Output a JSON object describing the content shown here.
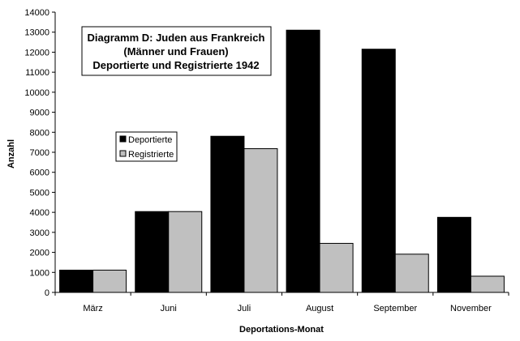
{
  "chart_data": {
    "type": "bar",
    "title_lines": [
      "Diagramm D: Juden aus Frankreich",
      "(Männer und Frauen)",
      "Deportierte und Registrierte 1942"
    ],
    "xlabel": "Deportations-Monat",
    "ylabel": "Anzahl",
    "categories": [
      "März",
      "Juni",
      "Juli",
      "August",
      "September",
      "November"
    ],
    "series": [
      {
        "name": "Deportierte",
        "color": "#000000",
        "values": [
          1112,
          4038,
          7800,
          13100,
          12150,
          3750
        ]
      },
      {
        "name": "Registrierte",
        "color": "#c0c0c0",
        "values": [
          1112,
          4038,
          7180,
          2450,
          1910,
          810
        ]
      }
    ],
    "ylim": [
      0,
      14000
    ],
    "yticks": [
      0,
      1000,
      2000,
      3000,
      4000,
      5000,
      6000,
      7000,
      8000,
      9000,
      10000,
      11000,
      12000,
      13000,
      14000
    ],
    "grid": false,
    "legend_position": "left-middle"
  }
}
